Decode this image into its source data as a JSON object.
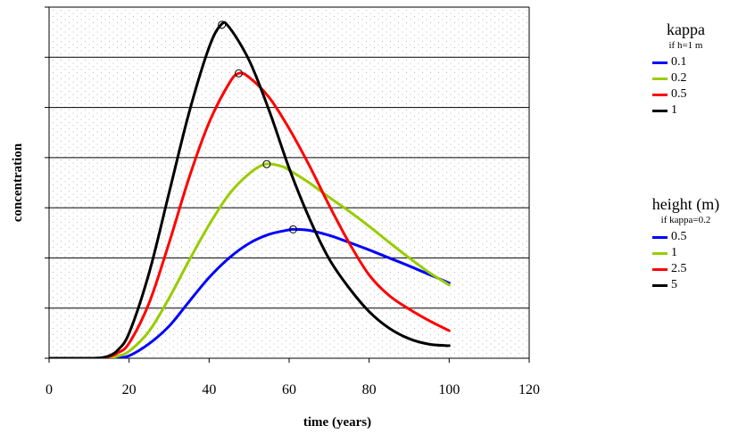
{
  "chart_data": {
    "type": "line",
    "title": "",
    "xlabel": "time (years)",
    "ylabel": "concentration",
    "xlim": [
      0,
      120
    ],
    "ylim": [
      0,
      7
    ],
    "xticks": [
      0,
      20,
      40,
      60,
      80,
      100,
      120
    ],
    "yticks": [
      0,
      1,
      2,
      3,
      4,
      5,
      6,
      7
    ],
    "ytick_labels_shown": false,
    "grid": "horizontal",
    "background": "dotted",
    "legend": {
      "placement": "right",
      "groups": [
        {
          "title": "kappa",
          "subtitle": "if h=1 m",
          "items": [
            {
              "label": "0.1",
              "color": "#0000ff"
            },
            {
              "label": "0.2",
              "color": "#99cc00"
            },
            {
              "label": "0.5",
              "color": "#ff0000"
            },
            {
              "label": "1",
              "color": "#000000"
            }
          ]
        },
        {
          "title": "height (m)",
          "subtitle": "if kappa=0.2",
          "items": [
            {
              "label": "0.5",
              "color": "#0000ff"
            },
            {
              "label": "1",
              "color": "#99cc00"
            },
            {
              "label": "2.5",
              "color": "#ff0000"
            },
            {
              "label": "5",
              "color": "#000000"
            }
          ]
        }
      ]
    },
    "series": [
      {
        "color": "#0000ff",
        "peak": [
          61,
          2.57
        ],
        "points": [
          [
            0,
            0
          ],
          [
            10,
            0
          ],
          [
            15,
            0
          ],
          [
            17,
            0.01
          ],
          [
            20,
            0.05
          ],
          [
            25,
            0.29
          ],
          [
            30,
            0.64
          ],
          [
            35,
            1.13
          ],
          [
            40,
            1.61
          ],
          [
            45,
            2.0
          ],
          [
            50,
            2.29
          ],
          [
            55,
            2.47
          ],
          [
            60,
            2.56
          ],
          [
            61,
            2.57
          ],
          [
            65,
            2.55
          ],
          [
            70,
            2.45
          ],
          [
            75,
            2.31
          ],
          [
            80,
            2.16
          ],
          [
            85,
            2.0
          ],
          [
            90,
            1.84
          ],
          [
            95,
            1.67
          ],
          [
            100,
            1.5
          ]
        ]
      },
      {
        "color": "#99cc00",
        "peak": [
          54.4,
          3.87
        ],
        "points": [
          [
            0,
            0
          ],
          [
            10,
            0
          ],
          [
            15,
            0.01
          ],
          [
            17,
            0.04
          ],
          [
            20,
            0.14
          ],
          [
            25,
            0.54
          ],
          [
            30,
            1.2
          ],
          [
            35,
            1.95
          ],
          [
            40,
            2.66
          ],
          [
            45,
            3.27
          ],
          [
            50,
            3.68
          ],
          [
            54,
            3.87
          ],
          [
            58,
            3.83
          ],
          [
            60,
            3.75
          ],
          [
            65,
            3.5
          ],
          [
            70,
            3.21
          ],
          [
            75,
            2.93
          ],
          [
            80,
            2.63
          ],
          [
            85,
            2.31
          ],
          [
            90,
            2.0
          ],
          [
            95,
            1.71
          ],
          [
            100,
            1.46
          ]
        ]
      },
      {
        "color": "#ff0000",
        "peak": [
          47.4,
          5.68
        ],
        "points": [
          [
            0,
            0
          ],
          [
            10,
            0
          ],
          [
            14,
            0.01
          ],
          [
            17,
            0.1
          ],
          [
            20,
            0.3
          ],
          [
            25,
            1.1
          ],
          [
            30,
            2.3
          ],
          [
            35,
            3.6
          ],
          [
            40,
            4.7
          ],
          [
            45,
            5.48
          ],
          [
            47.4,
            5.68
          ],
          [
            50,
            5.6
          ],
          [
            55,
            5.2
          ],
          [
            60,
            4.58
          ],
          [
            65,
            3.85
          ],
          [
            70,
            3.05
          ],
          [
            75,
            2.3
          ],
          [
            80,
            1.66
          ],
          [
            85,
            1.25
          ],
          [
            90,
            0.98
          ],
          [
            95,
            0.75
          ],
          [
            100,
            0.55
          ]
        ]
      },
      {
        "color": "#000000",
        "peak": [
          43.2,
          6.65
        ],
        "points": [
          [
            0,
            0
          ],
          [
            10,
            0
          ],
          [
            13,
            0.01
          ],
          [
            15,
            0.05
          ],
          [
            17,
            0.15
          ],
          [
            20,
            0.5
          ],
          [
            25,
            1.7
          ],
          [
            30,
            3.3
          ],
          [
            35,
            4.9
          ],
          [
            40,
            6.2
          ],
          [
            43,
            6.65
          ],
          [
            45,
            6.6
          ],
          [
            50,
            5.94
          ],
          [
            55,
            4.94
          ],
          [
            60,
            3.79
          ],
          [
            65,
            2.8
          ],
          [
            70,
            1.98
          ],
          [
            75,
            1.4
          ],
          [
            80,
            0.93
          ],
          [
            85,
            0.6
          ],
          [
            90,
            0.39
          ],
          [
            95,
            0.28
          ],
          [
            100,
            0.25
          ]
        ]
      }
    ]
  }
}
